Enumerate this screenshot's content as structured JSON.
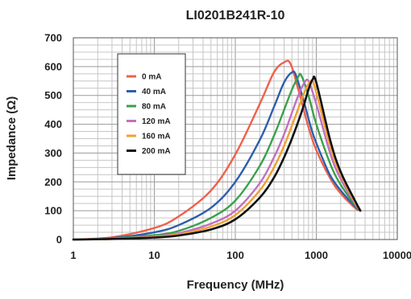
{
  "chart_data": {
    "type": "line",
    "title": "LI0201B241R-10",
    "xlabel": "Frequency (MHz)",
    "ylabel": "Impedance (Ω)",
    "xscale": "log",
    "xlim": [
      1,
      10000
    ],
    "ylim": [
      0,
      700
    ],
    "x_ticks": [
      {
        "value": 1,
        "label": "1"
      },
      {
        "value": 10,
        "label": "10"
      },
      {
        "value": 100,
        "label": "100"
      },
      {
        "value": 1000,
        "label": "1000"
      },
      {
        "value": 10000,
        "label": "10000"
      }
    ],
    "y_ticks": [
      {
        "value": 0,
        "label": "0"
      },
      {
        "value": 100,
        "label": "100"
      },
      {
        "value": 200,
        "label": "200"
      },
      {
        "value": 300,
        "label": "300"
      },
      {
        "value": 400,
        "label": "400"
      },
      {
        "value": 500,
        "label": "500"
      },
      {
        "value": 600,
        "label": "600"
      },
      {
        "value": 700,
        "label": "700"
      }
    ],
    "grid": true,
    "legend": "top-left inside plot",
    "series": [
      {
        "name": "0 mA",
        "color": "#f0604a",
        "x": [
          1,
          3,
          10,
          20,
          50,
          100,
          200,
          300,
          400,
          480,
          600,
          800,
          1000,
          1500,
          2000,
          3000,
          3500
        ],
        "y": [
          0,
          8,
          40,
          80,
          170,
          295,
          470,
          580,
          615,
          610,
          520,
          390,
          310,
          210,
          160,
          110,
          100
        ]
      },
      {
        "name": "40 mA",
        "color": "#2e5eaa",
        "x": [
          1,
          3,
          10,
          20,
          50,
          100,
          200,
          300,
          400,
          500,
          560,
          700,
          900,
          1200,
          1500,
          2000,
          3000,
          3500
        ],
        "y": [
          0,
          5,
          25,
          50,
          110,
          200,
          345,
          460,
          545,
          580,
          570,
          480,
          370,
          280,
          220,
          170,
          115,
          100
        ]
      },
      {
        "name": "80 mA",
        "color": "#3aa04a",
        "x": [
          1,
          3,
          10,
          20,
          50,
          100,
          200,
          300,
          400,
          500,
          600,
          650,
          800,
          1000,
          1500,
          2000,
          3000,
          3500
        ],
        "y": [
          0,
          4,
          15,
          30,
          75,
          135,
          255,
          360,
          450,
          520,
          565,
          570,
          500,
          400,
          260,
          190,
          120,
          100
        ]
      },
      {
        "name": "120 mA",
        "color": "#c070c0",
        "x": [
          1,
          3,
          10,
          20,
          50,
          100,
          200,
          300,
          400,
          500,
          600,
          700,
          800,
          1000,
          1500,
          2000,
          3000,
          3500
        ],
        "y": [
          0,
          3,
          11,
          22,
          55,
          100,
          195,
          285,
          365,
          440,
          500,
          540,
          550,
          470,
          295,
          210,
          125,
          100
        ]
      },
      {
        "name": "160 mA",
        "color": "#f0a030",
        "x": [
          1,
          3,
          10,
          20,
          50,
          100,
          200,
          300,
          400,
          500,
          600,
          700,
          800,
          900,
          1000,
          1500,
          2000,
          3000,
          3500
        ],
        "y": [
          0,
          2,
          9,
          18,
          45,
          85,
          170,
          250,
          325,
          395,
          455,
          505,
          540,
          550,
          510,
          320,
          225,
          130,
          100
        ]
      },
      {
        "name": "200 mA",
        "color": "#111111",
        "x": [
          1,
          3,
          10,
          20,
          50,
          100,
          200,
          300,
          400,
          500,
          600,
          700,
          800,
          900,
          1000,
          1500,
          2000,
          3000,
          3500
        ],
        "y": [
          0,
          2,
          7,
          14,
          35,
          70,
          145,
          215,
          285,
          350,
          410,
          465,
          520,
          555,
          545,
          340,
          235,
          135,
          100
        ]
      }
    ]
  }
}
